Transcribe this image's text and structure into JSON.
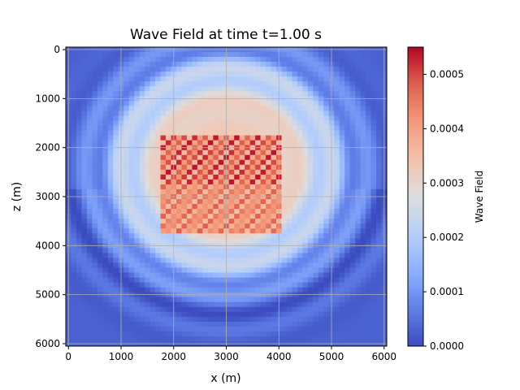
{
  "chart_data": {
    "type": "heatmap",
    "title": "Wave Field at time t=1.00 s",
    "xlabel": "x (m)",
    "ylabel": "z (m)",
    "x_range": [
      0,
      6000
    ],
    "z_range": [
      0,
      6000
    ],
    "z_inverted": true,
    "xticks": [
      "0",
      "1000",
      "2000",
      "3000",
      "4000",
      "5000",
      "6000"
    ],
    "yticks": [
      "0",
      "1000",
      "2000",
      "3000",
      "4000",
      "5000",
      "6000"
    ],
    "grid": true,
    "colormap": "coolwarm",
    "colorbar": {
      "label": "Wave Field",
      "range": [
        0,
        0.00055
      ],
      "ticks": [
        "0.0000",
        "0.0001",
        "0.0002",
        "0.0003",
        "0.0004",
        "0.0005"
      ]
    },
    "field_description": {
      "grid_cells": 60,
      "source_center_m": [
        3000,
        2400
      ],
      "wavefront_radius_m": 2400,
      "source_box_m": {
        "x": [
          1800,
          4000
        ],
        "z": [
          1800,
          3700
        ]
      },
      "peak_value": 0.00055
    }
  }
}
